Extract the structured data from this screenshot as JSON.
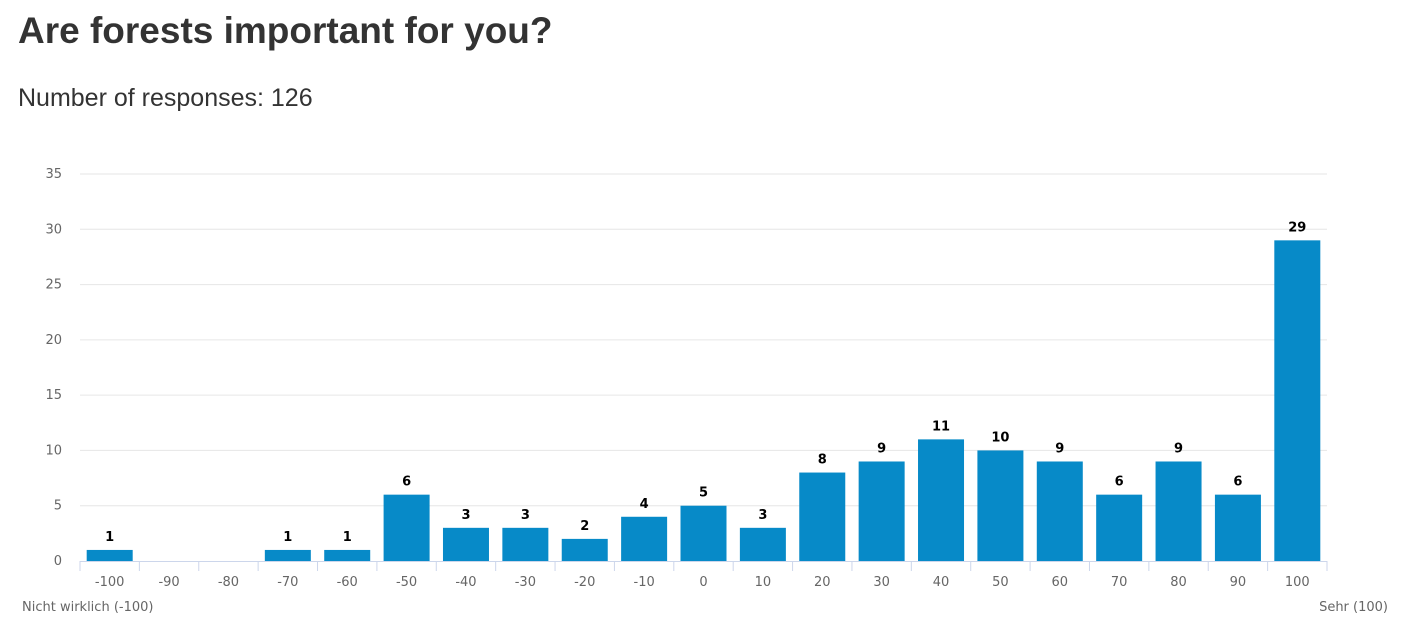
{
  "chart_data": {
    "type": "bar",
    "title": "Are forests important for you?",
    "subtitle": "Number of responses: 126",
    "categories": [
      "-100",
      "-90",
      "-80",
      "-70",
      "-60",
      "-50",
      "-40",
      "-30",
      "-20",
      "-10",
      "0",
      "10",
      "20",
      "30",
      "40",
      "50",
      "60",
      "70",
      "80",
      "90",
      "100"
    ],
    "values": [
      1,
      0,
      0,
      1,
      1,
      6,
      3,
      3,
      2,
      4,
      5,
      3,
      8,
      9,
      11,
      10,
      9,
      6,
      9,
      6,
      29
    ],
    "yticks": [
      "0",
      "5",
      "10",
      "15",
      "20",
      "25",
      "30",
      "35"
    ],
    "ylim": [
      0,
      35
    ],
    "x_min_label": "Nicht wirklich (-100)",
    "x_max_label": "Sehr (100)",
    "grid": true,
    "bar_color": "#078ac8"
  }
}
